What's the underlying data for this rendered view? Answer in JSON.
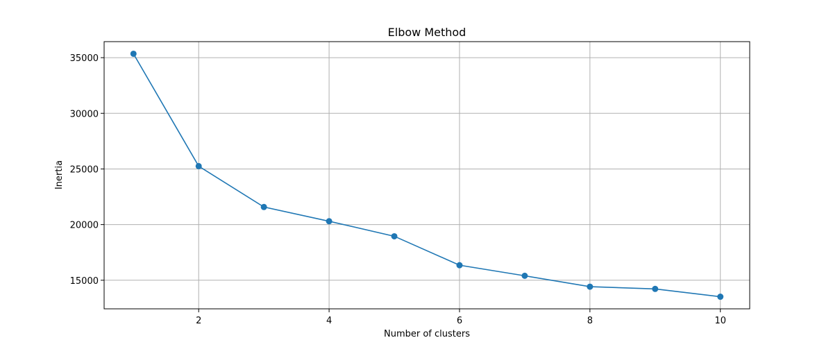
{
  "chart_data": {
    "type": "line",
    "title": "Elbow Method",
    "xlabel": "Number of clusters",
    "ylabel": "Inertia",
    "x": [
      1,
      2,
      3,
      4,
      5,
      6,
      7,
      8,
      9,
      10
    ],
    "series": [
      {
        "values": [
          35350,
          25250,
          21580,
          20300,
          18950,
          16350,
          15400,
          14420,
          14220,
          13520
        ],
        "color": "#1f77b4",
        "marker": "circle"
      }
    ],
    "xticks": [
      2,
      4,
      6,
      8,
      10
    ],
    "xtick_labels": [
      "2",
      "4",
      "6",
      "8",
      "10"
    ],
    "yticks": [
      15000,
      20000,
      25000,
      30000,
      35000
    ],
    "ytick_labels": [
      "15000",
      "20000",
      "25000",
      "30000",
      "35000"
    ],
    "xlim": [
      0.55,
      10.45
    ],
    "ylim": [
      12430,
      36440
    ],
    "grid": true
  }
}
